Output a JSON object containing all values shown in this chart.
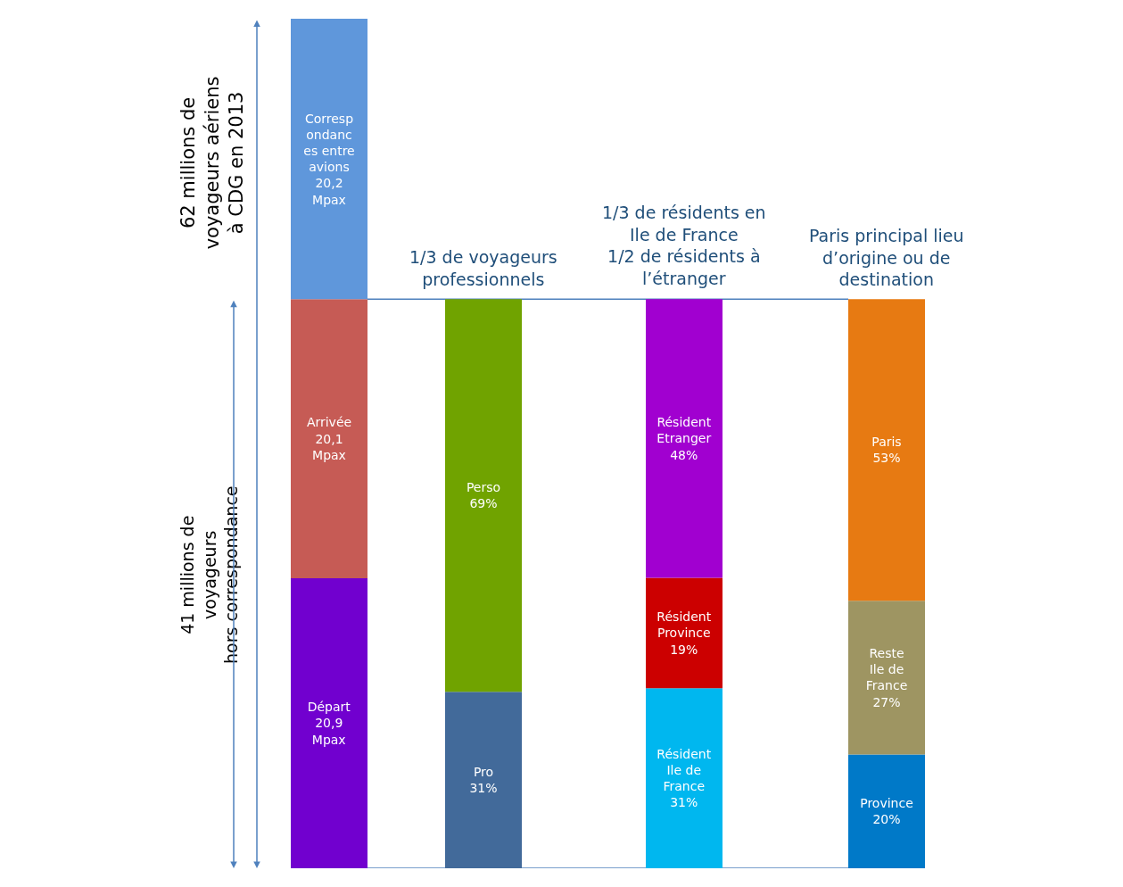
{
  "chart_data": [
    {
      "type": "bar",
      "stacked": true,
      "categories": [
        null
      ],
      "tick_labels": false,
      "series": [
        {
          "color": "#7100cf",
          "values": [
            20.9
          ],
          "value_labels": [
            "Départ\n20,9\nMpax"
          ]
        },
        {
          "color": "#c65b55",
          "values": [
            20.1
          ],
          "value_labels": [
            "Arrivée\n20,1\nMpax"
          ]
        },
        {
          "color": "#5f97db",
          "values": [
            20.2
          ],
          "value_labels": [
            "Corresp\nondanc\nes entre\navions\n20,2\nMpax"
          ]
        }
      ],
      "annotations": [
        "62 millions de\nvoyageurs aériens\nà CDG en 2013",
        "41 millions de\nvoyageurs\nhors correspondance"
      ]
    },
    {
      "type": "bar",
      "stacked": true,
      "categories": [
        null
      ],
      "tick_labels": false,
      "title": "1/3 de voyageurs\nprofessionnels",
      "series": [
        {
          "color": "#426a9a",
          "values": [
            31
          ],
          "value_labels": [
            "Pro\n31%"
          ]
        },
        {
          "color": "#70a300",
          "values": [
            69
          ],
          "value_labels": [
            "Perso\n69%"
          ]
        }
      ]
    },
    {
      "type": "bar",
      "stacked": true,
      "categories": [
        null
      ],
      "tick_labels": false,
      "title": "1/3 de résidents en\nIle de France\n1/2 de résidents à\nl’étranger",
      "series": [
        {
          "color": "#00b7ef",
          "values": [
            31
          ],
          "value_labels": [
            "Résident\nIle de\nFrance\n31%"
          ]
        },
        {
          "color": "#cc0000",
          "values": [
            19
          ],
          "value_labels": [
            "Résident\nProvince\n19%"
          ]
        },
        {
          "color": "#a100d0",
          "values": [
            48
          ],
          "value_labels": [
            "Résident\nEtranger\n48%"
          ]
        }
      ]
    },
    {
      "type": "bar",
      "stacked": true,
      "categories": [
        null
      ],
      "tick_labels": false,
      "title": "Paris principal lieu\nd’origine ou de\ndestination",
      "series": [
        {
          "color": "#0079c8",
          "values": [
            20
          ],
          "value_labels": [
            "Province\n20%"
          ]
        },
        {
          "color": "#9e9562",
          "values": [
            27
          ],
          "value_labels": [
            "Reste\nIle de\nFrance\n27%"
          ]
        },
        {
          "color": "#e77a12",
          "values": [
            53
          ],
          "value_labels": [
            "Paris\n53%"
          ]
        }
      ]
    }
  ]
}
